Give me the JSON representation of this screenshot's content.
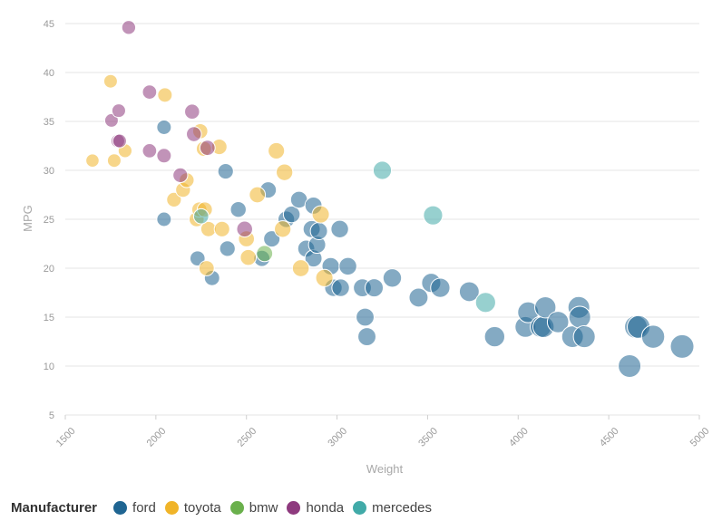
{
  "chart_data": {
    "type": "scatter",
    "title": "",
    "xlabel": "Weight",
    "ylabel": "MPG",
    "xlim": [
      1500,
      5000
    ],
    "ylim": [
      5,
      45
    ],
    "xticks": [
      "1500",
      "2000",
      "2500",
      "3000",
      "3500",
      "4000",
      "4500",
      "5000"
    ],
    "yticks": [
      "5",
      "10",
      "15",
      "20",
      "25",
      "30",
      "35",
      "40",
      "45"
    ],
    "grid": true,
    "size_encoding": "weight",
    "legend": {
      "title": "Manufacturer",
      "placement": "bottom-left",
      "entries": [
        "ford",
        "toyota",
        "bmw",
        "honda",
        "mercedes"
      ]
    },
    "series": [
      {
        "name": "ford",
        "color": "#1f6592",
        "points": [
          [
            2045,
            34.4
          ],
          [
            2045,
            25
          ],
          [
            2230,
            21
          ],
          [
            2310,
            19
          ],
          [
            2385,
            29.9
          ],
          [
            2395,
            22
          ],
          [
            2455,
            26
          ],
          [
            2585,
            21
          ],
          [
            2620,
            28
          ],
          [
            2640,
            23
          ],
          [
            2720,
            25
          ],
          [
            2750,
            25.5
          ],
          [
            2790,
            27
          ],
          [
            2830,
            22
          ],
          [
            2860,
            24
          ],
          [
            2870,
            26.4
          ],
          [
            2870,
            21
          ],
          [
            2890,
            22.4
          ],
          [
            2900,
            23.8
          ],
          [
            2965,
            20.2
          ],
          [
            2980,
            18
          ],
          [
            3015,
            24
          ],
          [
            3020,
            18
          ],
          [
            3060,
            20.2
          ],
          [
            3140,
            18
          ],
          [
            3155,
            15
          ],
          [
            3165,
            13
          ],
          [
            3205,
            18
          ],
          [
            3305,
            19
          ],
          [
            3450,
            17
          ],
          [
            3520,
            18.5
          ],
          [
            3570,
            18
          ],
          [
            3730,
            17.6
          ],
          [
            3870,
            13
          ],
          [
            4040,
            14
          ],
          [
            4055,
            15.5
          ],
          [
            4125,
            14
          ],
          [
            4140,
            14
          ],
          [
            4150,
            16
          ],
          [
            4220,
            14.5
          ],
          [
            4300,
            13
          ],
          [
            4335,
            16
          ],
          [
            4340,
            15
          ],
          [
            4365,
            13
          ],
          [
            4615,
            10
          ],
          [
            4650,
            14
          ],
          [
            4665,
            14
          ],
          [
            4745,
            13
          ],
          [
            4905,
            12
          ]
        ]
      },
      {
        "name": "toyota",
        "color": "#f0b429",
        "points": [
          [
            1650,
            31
          ],
          [
            1750,
            39.1
          ],
          [
            1770,
            31
          ],
          [
            1830,
            32
          ],
          [
            2050,
            37.7
          ],
          [
            2100,
            27
          ],
          [
            2150,
            28
          ],
          [
            2170,
            29
          ],
          [
            2225,
            25
          ],
          [
            2240,
            26
          ],
          [
            2245,
            34
          ],
          [
            2265,
            32.2
          ],
          [
            2270,
            26
          ],
          [
            2280,
            20
          ],
          [
            2290,
            24
          ],
          [
            2350,
            32.4
          ],
          [
            2365,
            24
          ],
          [
            2500,
            23
          ],
          [
            2510,
            21.1
          ],
          [
            2560,
            27.5
          ],
          [
            2665,
            32
          ],
          [
            2700,
            24
          ],
          [
            2710,
            29.8
          ],
          [
            2800,
            20
          ],
          [
            2910,
            25.5
          ],
          [
            2930,
            19
          ]
        ]
      },
      {
        "name": "bmw",
        "color": "#6ab04c",
        "points": [
          [
            2600,
            21.5
          ]
        ]
      },
      {
        "name": "honda",
        "color": "#8e3a7e",
        "points": [
          [
            1755,
            35.1
          ],
          [
            1790,
            33
          ],
          [
            1795,
            36.1
          ],
          [
            1800,
            33
          ],
          [
            1850,
            44.6
          ],
          [
            1965,
            32
          ],
          [
            1965,
            38
          ],
          [
            2045,
            31.5
          ],
          [
            2135,
            29.5
          ],
          [
            2200,
            36
          ],
          [
            2210,
            33.7
          ],
          [
            2285,
            32.3
          ],
          [
            2490,
            24
          ]
        ]
      },
      {
        "name": "mercedes",
        "color": "#41aaa8",
        "points": [
          [
            2250,
            25.3
          ],
          [
            3250,
            30
          ],
          [
            3530,
            25.4
          ],
          [
            3820,
            16.5
          ]
        ]
      }
    ]
  }
}
